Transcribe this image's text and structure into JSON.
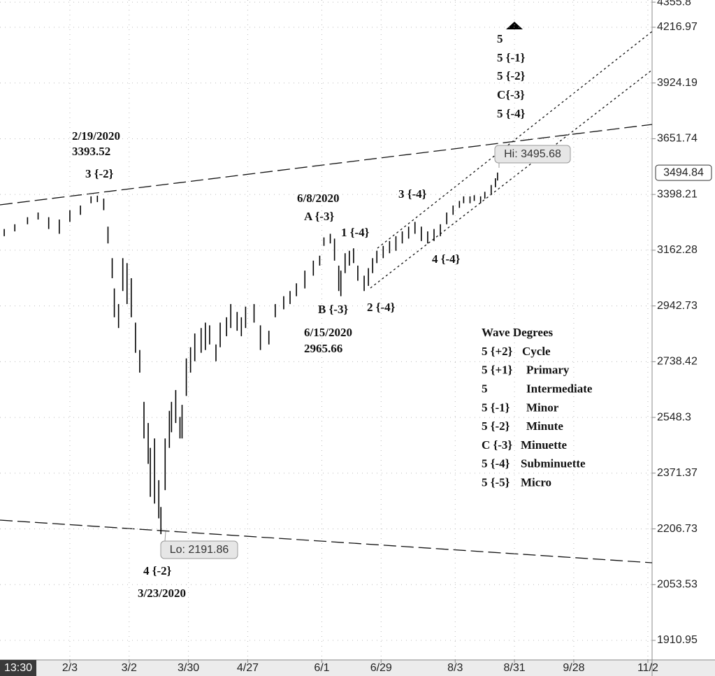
{
  "chart_data": {
    "type": "range",
    "log_scale": true,
    "grid": true,
    "color": "#000000",
    "time_label": "13:30",
    "x": [
      3,
      8,
      14,
      19,
      24,
      29,
      34,
      39,
      44,
      47,
      50,
      52,
      54,
      55,
      57,
      59,
      61,
      63,
      65,
      67,
      69,
      71,
      72,
      74,
      76,
      77,
      79,
      81,
      82,
      84,
      86,
      87,
      89,
      91,
      93,
      96,
      98,
      100,
      103,
      105,
      108,
      110,
      113,
      115,
      117,
      121,
      124,
      128,
      131,
      135,
      138,
      141,
      145,
      149,
      152,
      154,
      157,
      159,
      161,
      162,
      164,
      166,
      168,
      170,
      173,
      175,
      177,
      179,
      182,
      185,
      188,
      191,
      194,
      197,
      200,
      203,
      206,
      209,
      212,
      215,
      218,
      220,
      223,
      225,
      228,
      230,
      233,
      235,
      236
    ],
    "high": [
      3250,
      3270,
      3300,
      3320,
      3300,
      3290,
      3330,
      3350,
      3390,
      3393,
      3380,
      3260,
      3130,
      3010,
      2950,
      3130,
      3110,
      3050,
      2880,
      2780,
      2600,
      2530,
      2450,
      2480,
      2350,
      2270,
      2480,
      2570,
      2600,
      2640,
      2550,
      2590,
      2750,
      2790,
      2840,
      2860,
      2880,
      2870,
      2800,
      2880,
      2900,
      2950,
      2920,
      2900,
      2940,
      2950,
      2870,
      2850,
      2950,
      2980,
      3000,
      3030,
      3080,
      3120,
      3140,
      3215,
      3230,
      3210,
      3100,
      3080,
      3150,
      3160,
      3170,
      3100,
      3060,
      3090,
      3130,
      3160,
      3180,
      3200,
      3220,
      3240,
      3260,
      3280,
      3260,
      3240,
      3250,
      3270,
      3320,
      3350,
      3370,
      3390,
      3390,
      3395,
      3390,
      3410,
      3440,
      3470,
      3495.68
    ],
    "low": [
      3220,
      3240,
      3270,
      3290,
      3250,
      3230,
      3280,
      3310,
      3360,
      3365,
      3330,
      3190,
      3050,
      2900,
      2860,
      3000,
      2950,
      2900,
      2770,
      2700,
      2480,
      2400,
      2300,
      2280,
      2237,
      2191.86,
      2320,
      2450,
      2500,
      2530,
      2480,
      2480,
      2620,
      2700,
      2740,
      2770,
      2780,
      2800,
      2740,
      2790,
      2830,
      2860,
      2850,
      2830,
      2860,
      2880,
      2780,
      2800,
      2900,
      2930,
      2950,
      2980,
      3010,
      3060,
      3100,
      3180,
      3190,
      3120,
      3000,
      2980,
      3070,
      3100,
      3110,
      3040,
      3000,
      3020,
      3070,
      3110,
      3130,
      3150,
      3160,
      3190,
      3210,
      3230,
      3200,
      3190,
      3200,
      3220,
      3270,
      3310,
      3340,
      3360,
      3360,
      3370,
      3360,
      3380,
      3400,
      3430,
      3460
    ],
    "xlim": [
      1,
      309
    ],
    "xticks": [
      {
        "value": 34,
        "label": "2/3"
      },
      {
        "value": 62,
        "label": "3/2"
      },
      {
        "value": 90,
        "label": "3/30"
      },
      {
        "value": 118,
        "label": "4/27"
      },
      {
        "value": 153,
        "label": "6/1"
      },
      {
        "value": 181,
        "label": "6/29"
      },
      {
        "value": 216,
        "label": "8/3"
      },
      {
        "value": 244,
        "label": "8/31"
      },
      {
        "value": 272,
        "label": "9/28"
      },
      {
        "value": 307,
        "label": "11/2"
      }
    ],
    "ylim": [
      1865,
      4368
    ],
    "yticks": [
      1910.95,
      2053.53,
      2206.73,
      2371.37,
      2548.3,
      2738.42,
      2942.73,
      3162.28,
      3398.21,
      3651.74,
      3924.19,
      4216.97,
      4355.8
    ],
    "last_price": 3494.84,
    "callouts": [
      "Hi: 3495.68",
      "Lo: 2191.86"
    ],
    "annotations": [
      "2/19/2020",
      "3393.52",
      "3 {-2}",
      "6/8/2020",
      "A {-3}",
      "1 {-4}",
      "3 {-4}",
      "B {-3}",
      "2 {-4}",
      "4 {-4}",
      "6/15/2020",
      "2965.66",
      "4 {-2}",
      "3/23/2020",
      "5",
      "5 {-1}",
      "5 {-2}",
      "C{-3}",
      "5 {-4}"
    ],
    "legend": {
      "title": "Wave Degrees",
      "rows": [
        [
          "5 {+2}",
          "Cycle"
        ],
        [
          "5 {+1}",
          "Primary"
        ],
        [
          "5",
          "Intermediate"
        ],
        [
          "5 {-1}",
          "Minor"
        ],
        [
          "5 {-2}",
          "Minute"
        ],
        [
          "C {-3}",
          "Minuette"
        ],
        [
          "5 {-4}",
          "Subminuette"
        ],
        [
          "5 {-5}",
          "Micro"
        ]
      ]
    }
  }
}
